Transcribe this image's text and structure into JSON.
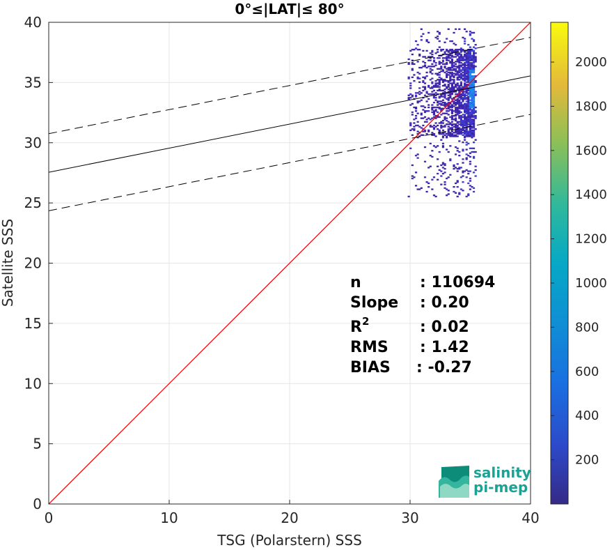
{
  "chart_data": {
    "type": "scatter",
    "title": "0°≤|LAT|≤ 80°",
    "xlabel": "TSG (Polarstern) SSS",
    "ylabel": "Satellite SSS",
    "xlim": [
      0,
      40
    ],
    "ylim": [
      0,
      40
    ],
    "xticks": [
      0,
      10,
      20,
      30,
      40
    ],
    "yticks": [
      0,
      5,
      10,
      15,
      20,
      25,
      30,
      35,
      40
    ],
    "grid": true,
    "one_to_one_line": {
      "color": "#ff0000",
      "from": [
        0,
        0
      ],
      "to": [
        40,
        40
      ]
    },
    "regression": {
      "slope": 0.2,
      "intercept": 27.55,
      "band": 3.2,
      "line_color": "#000000"
    },
    "density": {
      "x_range": [
        29.8,
        35.4
      ],
      "y_range": [
        25.5,
        39.5
      ],
      "peak": [
        35.1,
        34.5
      ],
      "colormap": "parula"
    },
    "colorbar": {
      "min": 0,
      "max": 2180,
      "ticks": [
        200,
        400,
        600,
        800,
        1000,
        1200,
        1400,
        1600,
        1800,
        2000
      ]
    },
    "stats": [
      {
        "label": "n",
        "value": ": 110694"
      },
      {
        "label": "Slope",
        "value": ": 0.20"
      },
      {
        "label": "R",
        "sup": "2",
        "value": ": 0.02"
      },
      {
        "label": "RMS",
        "value": ": 1.42"
      },
      {
        "label": "BIAS",
        "value": ": -0.27"
      }
    ],
    "logo": {
      "line1": "salinity",
      "line2": "pi-mep"
    }
  }
}
